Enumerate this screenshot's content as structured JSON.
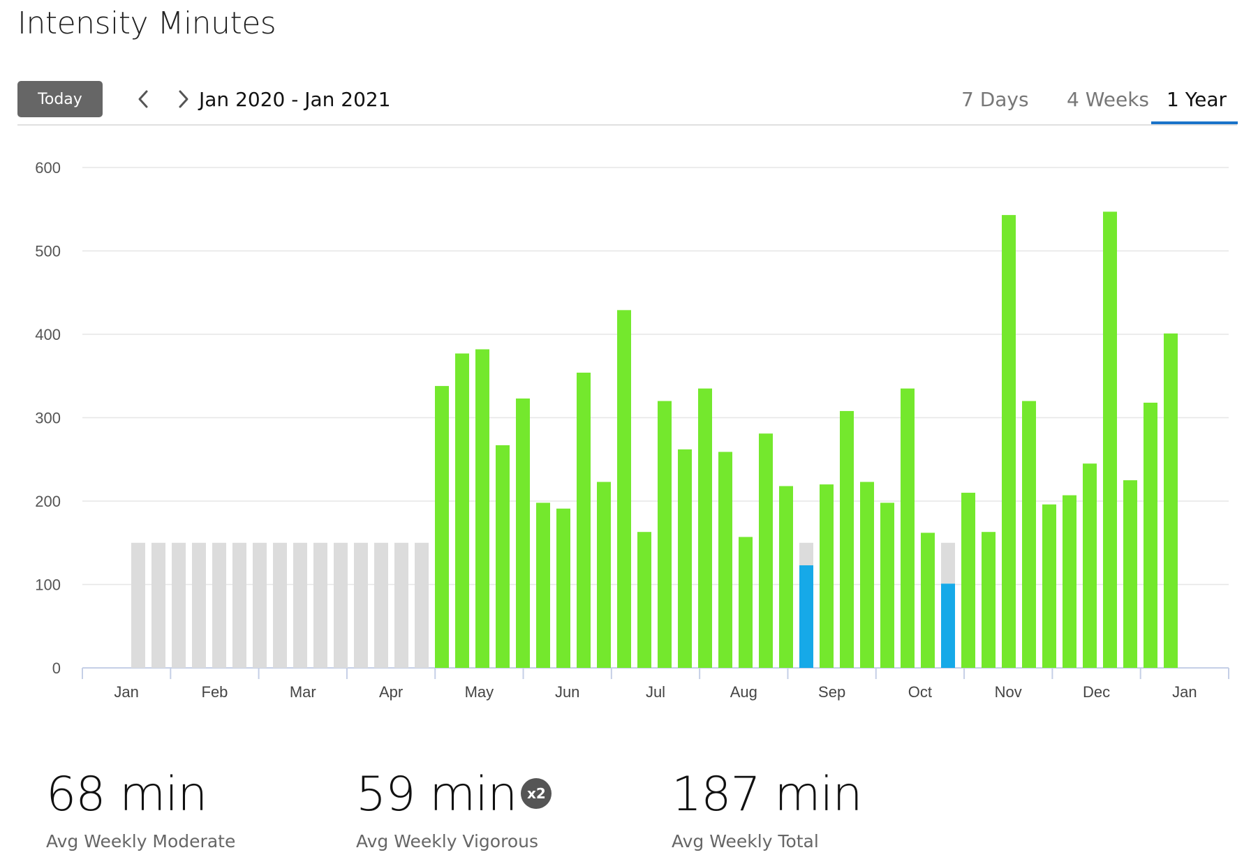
{
  "page": {
    "title": "Intensity Minutes"
  },
  "toolbar": {
    "today_label": "Today",
    "prev_icon": "chevron-left-icon",
    "next_icon": "chevron-right-icon",
    "date_range": "Jan 2020 - Jan 2021",
    "tabs": [
      {
        "label": "7 Days",
        "active": false
      },
      {
        "label": "4 Weeks",
        "active": false
      },
      {
        "label": "1 Year",
        "active": true
      }
    ],
    "accent_color": "#1a73c9"
  },
  "chart_data": {
    "type": "bar",
    "title": "",
    "xlabel": "",
    "ylabel": "",
    "ylim": [
      0,
      600
    ],
    "yticks": [
      0,
      100,
      200,
      300,
      400,
      500,
      600
    ],
    "grid": true,
    "month_labels": [
      "Jan",
      "Feb",
      "Mar",
      "Apr",
      "May",
      "Jun",
      "Jul",
      "Aug",
      "Sep",
      "Oct",
      "Nov",
      "Dec",
      "Jan"
    ],
    "goal": 150,
    "colors": {
      "goal_met": "#74e82d",
      "below_goal": "#16a9e8",
      "no_data": "#dcdcdc",
      "grid": "#e6e6e6",
      "axis": "#c5cfe6"
    },
    "weeks": [
      {
        "value": 0,
        "status": "no_data"
      },
      {
        "value": 0,
        "status": "no_data"
      },
      {
        "value": 0,
        "status": "no_data"
      },
      {
        "value": 0,
        "status": "no_data"
      },
      {
        "value": 0,
        "status": "no_data"
      },
      {
        "value": 0,
        "status": "no_data"
      },
      {
        "value": 0,
        "status": "no_data"
      },
      {
        "value": 0,
        "status": "no_data"
      },
      {
        "value": 0,
        "status": "no_data"
      },
      {
        "value": 0,
        "status": "no_data"
      },
      {
        "value": 0,
        "status": "no_data"
      },
      {
        "value": 0,
        "status": "no_data"
      },
      {
        "value": 0,
        "status": "no_data"
      },
      {
        "value": 0,
        "status": "no_data"
      },
      {
        "value": 0,
        "status": "no_data"
      },
      {
        "value": 338,
        "status": "goal_met"
      },
      {
        "value": 377,
        "status": "goal_met"
      },
      {
        "value": 382,
        "status": "goal_met"
      },
      {
        "value": 267,
        "status": "goal_met"
      },
      {
        "value": 323,
        "status": "goal_met"
      },
      {
        "value": 198,
        "status": "goal_met"
      },
      {
        "value": 191,
        "status": "goal_met"
      },
      {
        "value": 354,
        "status": "goal_met"
      },
      {
        "value": 223,
        "status": "goal_met"
      },
      {
        "value": 429,
        "status": "goal_met"
      },
      {
        "value": 163,
        "status": "goal_met"
      },
      {
        "value": 320,
        "status": "goal_met"
      },
      {
        "value": 262,
        "status": "goal_met"
      },
      {
        "value": 335,
        "status": "goal_met"
      },
      {
        "value": 259,
        "status": "goal_met"
      },
      {
        "value": 157,
        "status": "goal_met"
      },
      {
        "value": 281,
        "status": "goal_met"
      },
      {
        "value": 218,
        "status": "goal_met"
      },
      {
        "value": 123,
        "status": "below_goal"
      },
      {
        "value": 220,
        "status": "goal_met"
      },
      {
        "value": 308,
        "status": "goal_met"
      },
      {
        "value": 223,
        "status": "goal_met"
      },
      {
        "value": 198,
        "status": "goal_met"
      },
      {
        "value": 335,
        "status": "goal_met"
      },
      {
        "value": 162,
        "status": "goal_met"
      },
      {
        "value": 101,
        "status": "below_goal"
      },
      {
        "value": 210,
        "status": "goal_met"
      },
      {
        "value": 163,
        "status": "goal_met"
      },
      {
        "value": 543,
        "status": "goal_met"
      },
      {
        "value": 320,
        "status": "goal_met"
      },
      {
        "value": 196,
        "status": "goal_met"
      },
      {
        "value": 207,
        "status": "goal_met"
      },
      {
        "value": 245,
        "status": "goal_met"
      },
      {
        "value": 547,
        "status": "goal_met"
      },
      {
        "value": 225,
        "status": "goal_met"
      },
      {
        "value": 318,
        "status": "goal_met"
      },
      {
        "value": 401,
        "status": "goal_met"
      }
    ]
  },
  "stats": [
    {
      "value": "68 min",
      "label": "Avg Weekly Moderate"
    },
    {
      "value": "59 min",
      "label": "Avg Weekly Vigorous",
      "badge": "x2"
    },
    {
      "value": "187 min",
      "label": "Avg Weekly Total"
    }
  ]
}
